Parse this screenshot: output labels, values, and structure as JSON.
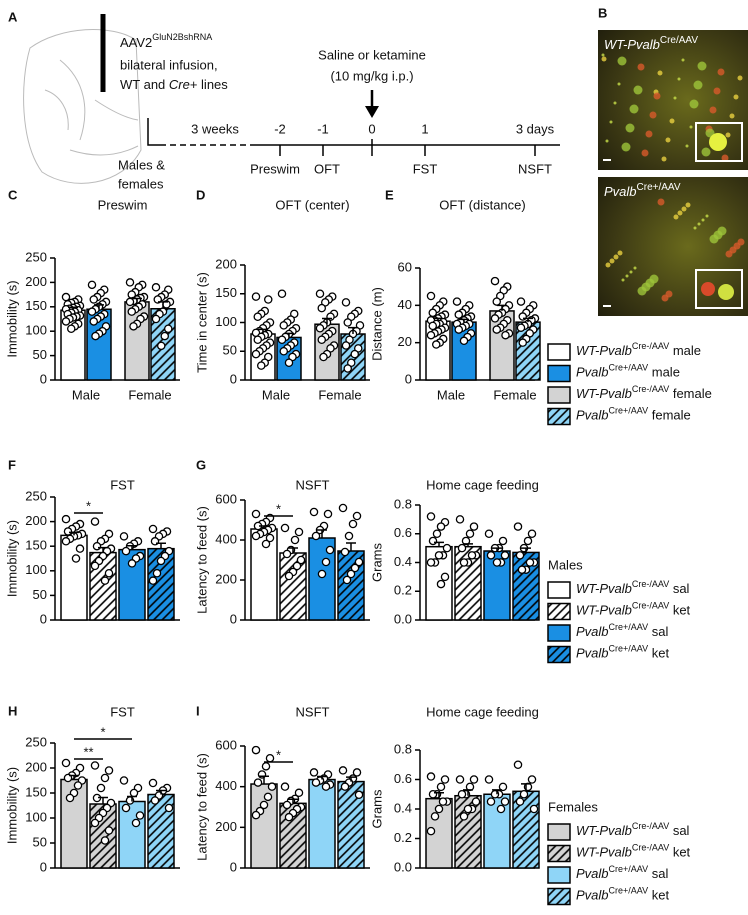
{
  "panel_labels": [
    "A",
    "B",
    "C",
    "D",
    "E",
    "F",
    "G",
    "H",
    "I"
  ],
  "schematic": {
    "vector": "AAV2",
    "vector_sup": "GluN2BshRNA",
    "infusion": "bilateral infusion,",
    "lines": [
      "WT and ",
      "Cre",
      "+ lines"
    ],
    "treatment": "Saline or ketamine",
    "dose": "(10 mg/kg i.p.)",
    "cohort": [
      "Males &",
      "females"
    ],
    "interval": "3 weeks",
    "days": [
      "-2",
      "-1",
      "0",
      "1",
      "3 days"
    ],
    "tests": [
      "Preswim",
      "OFT",
      "FST",
      "NSFT"
    ]
  },
  "micrographs": [
    {
      "italic": "WT-Pvalb",
      "sup": "Cre/AAV"
    },
    {
      "italic": "Pvalb",
      "sup": "Cre+/AAV"
    }
  ],
  "legends": [
    {
      "items": [
        {
          "italic": "WT-Pvalb",
          "sup": "Cre-/AAV",
          "text": " male",
          "color": "#ffffff",
          "hatch": false
        },
        {
          "italic": "Pvalb",
          "sup": "Cre+/AAV",
          "text": " male",
          "color": "#1a8fe3",
          "hatch": false
        },
        {
          "italic": "WT-Pvalb",
          "sup": "Cre-/AAV",
          "text": " female",
          "color": "#d3d3d3",
          "hatch": false
        },
        {
          "italic": "Pvalb",
          "sup": "Cre+/AAV",
          "text": " female",
          "color": "#8fd5f7",
          "hatch": true
        }
      ]
    },
    {
      "title": "Males",
      "items": [
        {
          "italic": "WT-Pvalb",
          "sup": "Cre-/AAV",
          "text": " sal",
          "color": "#ffffff",
          "hatch": false
        },
        {
          "italic": "WT-Pvalb",
          "sup": "Cre-/AAV",
          "text": " ket",
          "color": "#ffffff",
          "hatch": true
        },
        {
          "italic": "Pvalb",
          "sup": "Cre+/AAV",
          "text": " sal",
          "color": "#1a8fe3",
          "hatch": false
        },
        {
          "italic": "Pvalb",
          "sup": "Cre+/AAV",
          "text": " ket",
          "color": "#1a8fe3",
          "hatch": true
        }
      ]
    },
    {
      "title": "Females",
      "items": [
        {
          "italic": "WT-Pvalb",
          "sup": "Cre-/AAV",
          "text": " sal",
          "color": "#d3d3d3",
          "hatch": false
        },
        {
          "italic": "WT-Pvalb",
          "sup": "Cre-/AAV",
          "text": " ket",
          "color": "#d3d3d3",
          "hatch": true
        },
        {
          "italic": "Pvalb",
          "sup": "Cre+/AAV",
          "text": " sal",
          "color": "#8fd5f7",
          "hatch": false
        },
        {
          "italic": "Pvalb",
          "sup": "Cre+/AAV",
          "text": " ket",
          "color": "#8fd5f7",
          "hatch": true
        }
      ]
    }
  ],
  "chart_data": [
    {
      "type": "bar",
      "title": "Preswim",
      "ylabel": "Immobility (s)",
      "categories": [
        "Male",
        "Female"
      ],
      "ylim": [
        0,
        250
      ],
      "yticks": [
        0,
        50,
        100,
        150,
        200,
        250
      ],
      "series": [
        {
          "color": "#ffffff",
          "hatch": false,
          "value": 143,
          "error": 6,
          "points": [
            170,
            165,
            160,
            158,
            155,
            152,
            150,
            148,
            146,
            145,
            143,
            140,
            138,
            135,
            132,
            130,
            128,
            125,
            120,
            115,
            110,
            105
          ]
        },
        {
          "color": "#1a8fe3",
          "hatch": false,
          "value": 145,
          "error": 9,
          "points": [
            195,
            185,
            178,
            170,
            165,
            160,
            155,
            150,
            145,
            140,
            135,
            130,
            125,
            120,
            110,
            100,
            95,
            90
          ]
        },
        {
          "color": "#d3d3d3",
          "hatch": false,
          "value": 160,
          "error": 7,
          "points": [
            200,
            195,
            190,
            180,
            175,
            170,
            168,
            165,
            162,
            160,
            155,
            150,
            145,
            140,
            130,
            125,
            115,
            110
          ]
        },
        {
          "color": "#8fd5f7",
          "hatch": true,
          "value": 146,
          "error": 14,
          "points": [
            190,
            185,
            175,
            170,
            165,
            160,
            155,
            140,
            135,
            125,
            105,
            90,
            70
          ]
        }
      ]
    },
    {
      "type": "bar",
      "title": "OFT (center)",
      "ylabel": "Time in center (s)",
      "categories": [
        "Male",
        "Female"
      ],
      "ylim": [
        0,
        200
      ],
      "yticks": [
        0,
        50,
        100,
        150,
        200
      ],
      "series": [
        {
          "color": "#ffffff",
          "hatch": false,
          "value": 80,
          "error": 8,
          "points": [
            145,
            140,
            120,
            115,
            110,
            100,
            95,
            90,
            85,
            82,
            80,
            78,
            75,
            70,
            65,
            60,
            55,
            50,
            45,
            40,
            30,
            25
          ]
        },
        {
          "color": "#1a8fe3",
          "hatch": false,
          "value": 74,
          "error": 7,
          "points": [
            150,
            115,
            105,
            100,
            95,
            90,
            85,
            80,
            75,
            70,
            65,
            60,
            55,
            50,
            45,
            40,
            30
          ]
        },
        {
          "color": "#d3d3d3",
          "hatch": false,
          "value": 97,
          "error": 10,
          "points": [
            150,
            145,
            140,
            135,
            125,
            115,
            110,
            100,
            95,
            90,
            85,
            80,
            75,
            70,
            60,
            55,
            45,
            40
          ]
        },
        {
          "color": "#8fd5f7",
          "hatch": true,
          "value": 80,
          "error": 11,
          "points": [
            135,
            120,
            115,
            110,
            100,
            95,
            85,
            80,
            70,
            60,
            55,
            45,
            30,
            20
          ]
        }
      ]
    },
    {
      "type": "bar",
      "title": "OFT (distance)",
      "ylabel": "Distance (m)",
      "categories": [
        "Male",
        "Female"
      ],
      "ylim": [
        0,
        60
      ],
      "yticks": [
        0,
        20,
        40,
        60
      ],
      "series": [
        {
          "color": "#ffffff",
          "hatch": false,
          "value": 31.5,
          "error": 1.5,
          "points": [
            45,
            42,
            40,
            38,
            36,
            35,
            34,
            33,
            32,
            32,
            31,
            30,
            30,
            29,
            28,
            27,
            26,
            25,
            24,
            22,
            20,
            19
          ]
        },
        {
          "color": "#1a8fe3",
          "hatch": false,
          "value": 31,
          "error": 1.5,
          "points": [
            42,
            40,
            38,
            36,
            35,
            34,
            33,
            32,
            31,
            30,
            30,
            29,
            28,
            27,
            25,
            23,
            21
          ]
        },
        {
          "color": "#d3d3d3",
          "hatch": false,
          "value": 37,
          "error": 3,
          "points": [
            53,
            50,
            48,
            45,
            42,
            40,
            38,
            36,
            35,
            33,
            32,
            30,
            28,
            27,
            25,
            24
          ]
        },
        {
          "color": "#8fd5f7",
          "hatch": true,
          "value": 31,
          "error": 2,
          "points": [
            42,
            40,
            38,
            36,
            34,
            33,
            32,
            30,
            29,
            28,
            27,
            25,
            22,
            20
          ]
        }
      ]
    },
    {
      "type": "bar",
      "title": "FST",
      "ylabel": "Immobility (s)",
      "ylim": [
        0,
        250
      ],
      "yticks": [
        0,
        50,
        100,
        150,
        200,
        250
      ],
      "series": [
        {
          "color": "#ffffff",
          "hatch": false,
          "value": 172,
          "error": 6,
          "points": [
            205,
            195,
            190,
            185,
            180,
            175,
            172,
            170,
            165,
            160,
            145,
            125
          ]
        },
        {
          "color": "#ffffff",
          "hatch": true,
          "value": 137,
          "error": 10,
          "significance": "*",
          "points": [
            200,
            175,
            165,
            160,
            150,
            145,
            140,
            130,
            120,
            110,
            95,
            80
          ]
        },
        {
          "color": "#1a8fe3",
          "hatch": false,
          "value": 143,
          "error": 8,
          "points": [
            170,
            160,
            155,
            150,
            140,
            130,
            125,
            115
          ]
        },
        {
          "color": "#1a8fe3",
          "hatch": true,
          "value": 145,
          "error": 11,
          "points": [
            185,
            180,
            175,
            170,
            160,
            140,
            130,
            120,
            95,
            80
          ]
        }
      ]
    },
    {
      "type": "bar",
      "title": "NSFT",
      "ylabel": "Latency to feed (s)",
      "ylim": [
        0,
        600
      ],
      "yticks": [
        0,
        200,
        400,
        600
      ],
      "series": [
        {
          "color": "#ffffff",
          "hatch": false,
          "value": 455,
          "error": 15,
          "points": [
            530,
            510,
            490,
            480,
            470,
            460,
            450,
            440,
            430,
            420,
            410,
            380
          ]
        },
        {
          "color": "#ffffff",
          "hatch": true,
          "value": 335,
          "error": 25,
          "significance": "*",
          "points": [
            460,
            440,
            400,
            350,
            330,
            300,
            270,
            240,
            220
          ]
        },
        {
          "color": "#1a8fe3",
          "hatch": false,
          "value": 410,
          "error": 40,
          "points": [
            540,
            530,
            470,
            450,
            420,
            350,
            290,
            230
          ]
        },
        {
          "color": "#1a8fe3",
          "hatch": true,
          "value": 345,
          "error": 40,
          "points": [
            560,
            520,
            480,
            420,
            340,
            290,
            260,
            230,
            200
          ]
        }
      ]
    },
    {
      "type": "bar",
      "title": "Home cage feeding",
      "ylabel": "Grams",
      "ylim": [
        0,
        0.8
      ],
      "yticks": [
        {
          "value": 0,
          "label": "0.0"
        },
        0.2,
        0.4,
        0.6,
        0.8
      ],
      "series": [
        {
          "color": "#ffffff",
          "hatch": false,
          "value": 0.51,
          "error": 0.03,
          "points": [
            0.72,
            0.68,
            0.65,
            0.6,
            0.55,
            0.5,
            0.45,
            0.45,
            0.4,
            0.4,
            0.3,
            0.25
          ]
        },
        {
          "color": "#ffffff",
          "hatch": true,
          "value": 0.51,
          "error": 0.02,
          "points": [
            0.7,
            0.65,
            0.6,
            0.55,
            0.5,
            0.45,
            0.45,
            0.4,
            0.4
          ]
        },
        {
          "color": "#1a8fe3",
          "hatch": false,
          "value": 0.48,
          "error": 0.02,
          "points": [
            0.6,
            0.55,
            0.5,
            0.5,
            0.45,
            0.45,
            0.4,
            0.4
          ]
        },
        {
          "color": "#1a8fe3",
          "hatch": true,
          "value": 0.47,
          "error": 0.03,
          "points": [
            0.65,
            0.6,
            0.55,
            0.5,
            0.45,
            0.4,
            0.4,
            0.35,
            0.35
          ]
        }
      ]
    },
    {
      "type": "bar",
      "title": "FST",
      "ylabel": "Immobility (s)",
      "ylim": [
        0,
        250
      ],
      "yticks": [
        0,
        50,
        100,
        150,
        200,
        250
      ],
      "series": [
        {
          "color": "#d3d3d3",
          "hatch": false,
          "value": 177,
          "error": 8,
          "points": [
            210,
            200,
            190,
            185,
            180,
            175,
            165,
            150,
            140
          ]
        },
        {
          "color": "#d3d3d3",
          "hatch": true,
          "value": 128,
          "error": 13,
          "significance": "**",
          "points": [
            205,
            195,
            180,
            160,
            140,
            130,
            120,
            110,
            100,
            90,
            75,
            55
          ]
        },
        {
          "color": "#8fd5f7",
          "hatch": false,
          "value": 133,
          "error": 10,
          "significance": "*",
          "points": [
            175,
            160,
            150,
            135,
            120,
            105,
            90
          ]
        },
        {
          "color": "#8fd5f7",
          "hatch": true,
          "value": 147,
          "error": 8,
          "points": [
            170,
            160,
            155,
            145,
            135,
            120
          ]
        }
      ]
    },
    {
      "type": "bar",
      "title": "NSFT",
      "ylabel": "Latency to feed (s)",
      "ylim": [
        0,
        600
      ],
      "yticks": [
        0,
        200,
        400,
        600
      ],
      "series": [
        {
          "color": "#d3d3d3",
          "hatch": false,
          "value": 413,
          "error": 38,
          "points": [
            580,
            540,
            500,
            460,
            420,
            400,
            350,
            310,
            280,
            260
          ]
        },
        {
          "color": "#d3d3d3",
          "hatch": true,
          "value": 318,
          "error": 20,
          "significance": "*",
          "points": [
            400,
            370,
            340,
            330,
            310,
            300,
            290,
            270,
            250
          ]
        },
        {
          "color": "#8fd5f7",
          "hatch": false,
          "value": 435,
          "error": 15,
          "points": [
            470,
            460,
            440,
            430,
            420,
            410,
            400
          ]
        },
        {
          "color": "#8fd5f7",
          "hatch": true,
          "value": 425,
          "error": 22,
          "points": [
            480,
            470,
            440,
            420,
            400,
            360
          ]
        }
      ]
    },
    {
      "type": "bar",
      "title": "Home cage feeding",
      "ylabel": "Grams",
      "ylim": [
        0,
        0.8
      ],
      "yticks": [
        {
          "value": 0,
          "label": "0.0"
        },
        0.2,
        0.4,
        0.6,
        0.8
      ],
      "series": [
        {
          "color": "#d3d3d3",
          "hatch": false,
          "value": 0.47,
          "error": 0.04,
          "points": [
            0.62,
            0.6,
            0.55,
            0.5,
            0.5,
            0.45,
            0.45,
            0.4,
            0.35,
            0.25
          ]
        },
        {
          "color": "#d3d3d3",
          "hatch": true,
          "value": 0.49,
          "error": 0.04,
          "points": [
            0.6,
            0.6,
            0.55,
            0.5,
            0.5,
            0.45,
            0.4,
            0.4,
            0.35
          ]
        },
        {
          "color": "#8fd5f7",
          "hatch": false,
          "value": 0.5,
          "error": 0.03,
          "points": [
            0.6,
            0.55,
            0.5,
            0.5,
            0.45,
            0.45,
            0.4
          ]
        },
        {
          "color": "#8fd5f7",
          "hatch": true,
          "value": 0.52,
          "error": 0.05,
          "points": [
            0.7,
            0.6,
            0.55,
            0.5,
            0.45,
            0.4
          ]
        }
      ]
    }
  ]
}
